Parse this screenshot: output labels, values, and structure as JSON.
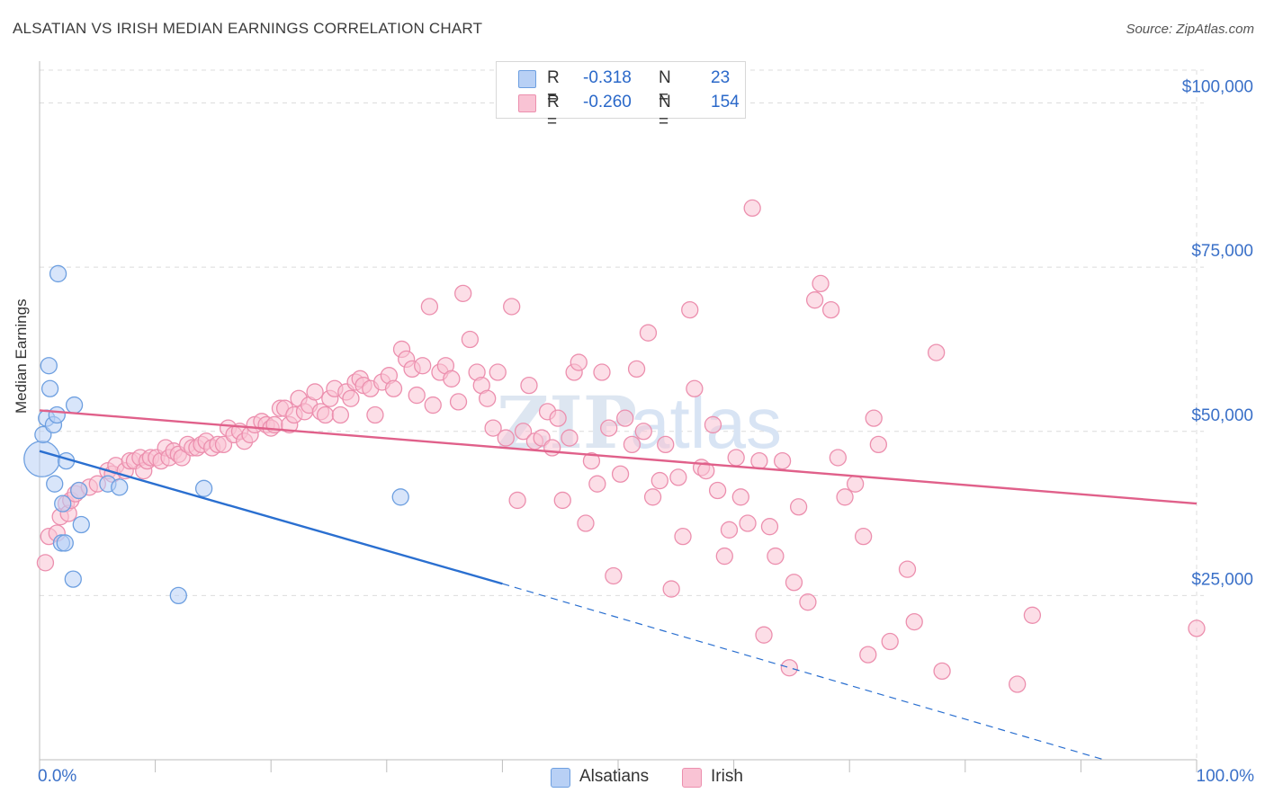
{
  "title": "ALSATIAN VS IRISH MEDIAN EARNINGS CORRELATION CHART",
  "source": "Source: ZipAtlas.com",
  "watermark": "ZIPatlas",
  "colors": {
    "alsatians_fill": "#b8d0f5",
    "alsatians_stroke": "#6d9fe0",
    "alsatians_line": "#2a6fd0",
    "irish_fill": "#f9c3d4",
    "irish_stroke": "#ec8fae",
    "irish_line": "#e0608a",
    "tick": "#3a70c8"
  },
  "legend": {
    "rows": [
      {
        "r_label": "R =",
        "r_value": "-0.318",
        "n_label": "N =",
        "n_value": "23"
      },
      {
        "r_label": "R =",
        "r_value": "-0.260",
        "n_label": "N =",
        "n_value": "154"
      }
    ],
    "bottom": [
      "Alsatians",
      "Irish"
    ]
  },
  "chart_data": {
    "type": "scatter",
    "title": "ALSATIAN VS IRISH MEDIAN EARNINGS CORRELATION CHART",
    "xlabel": "",
    "ylabel": "Median Earnings",
    "xlim": [
      0,
      100
    ],
    "ylim": [
      0,
      105000
    ],
    "x_tick_labels": [
      "0.0%",
      "100.0%"
    ],
    "y_ticks": [
      25000,
      50000,
      75000,
      100000
    ],
    "y_tick_labels": [
      "$25,000",
      "$50,000",
      "$75,000",
      "$100,000"
    ],
    "grid": true,
    "legend_position": "top-center",
    "series": [
      {
        "name": "Alsatians",
        "r": -0.318,
        "n": 23,
        "trend": {
          "x": [
            0,
            40,
            92
          ],
          "y": [
            47000,
            26800,
            0
          ],
          "solid_until_x": 40
        },
        "points": [
          [
            0.2,
            45800,
            2.2
          ],
          [
            0.3,
            49500,
            1
          ],
          [
            0.6,
            52000,
            1
          ],
          [
            0.8,
            60000,
            1
          ],
          [
            0.9,
            56500,
            1
          ],
          [
            1.2,
            51000,
            1
          ],
          [
            1.5,
            52500,
            1
          ],
          [
            1.6,
            74000,
            1
          ],
          [
            2.0,
            39000,
            1
          ],
          [
            1.9,
            33000,
            1
          ],
          [
            1.3,
            42000,
            1
          ],
          [
            2.2,
            33000,
            1
          ],
          [
            2.3,
            45500,
            1
          ],
          [
            2.9,
            27500,
            1
          ],
          [
            3.0,
            54000,
            1
          ],
          [
            3.4,
            41000,
            1
          ],
          [
            3.6,
            35800,
            1
          ],
          [
            5.9,
            42000,
            1
          ],
          [
            6.9,
            41500,
            1
          ],
          [
            12.0,
            25000,
            1
          ],
          [
            14.2,
            41300,
            1
          ],
          [
            31.2,
            40000,
            1
          ]
        ]
      },
      {
        "name": "Irish",
        "r": -0.26,
        "n": 154,
        "trend": {
          "x": [
            0,
            100
          ],
          "y": [
            53200,
            39000
          ]
        },
        "points": [
          [
            0.5,
            30000,
            1
          ],
          [
            0.8,
            34000,
            1
          ],
          [
            1.5,
            34500,
            1
          ],
          [
            1.8,
            37000,
            1
          ],
          [
            2.3,
            39000,
            1
          ],
          [
            2.5,
            37500,
            1
          ],
          [
            2.7,
            39500,
            1
          ],
          [
            3.1,
            40500,
            1
          ],
          [
            3.4,
            41000,
            1
          ],
          [
            4.3,
            41500,
            1
          ],
          [
            5.0,
            42000,
            1
          ],
          [
            5.9,
            44000,
            1
          ],
          [
            6.3,
            43500,
            1
          ],
          [
            6.6,
            44800,
            1
          ],
          [
            7.4,
            44000,
            1
          ],
          [
            7.8,
            45500,
            1
          ],
          [
            8.2,
            45500,
            1
          ],
          [
            8.7,
            46000,
            1
          ],
          [
            9.0,
            44000,
            1
          ],
          [
            9.3,
            45500,
            1
          ],
          [
            9.6,
            46000,
            1
          ],
          [
            10.1,
            46000,
            1
          ],
          [
            10.5,
            45500,
            1
          ],
          [
            10.9,
            47500,
            1
          ],
          [
            11.2,
            46000,
            1
          ],
          [
            11.6,
            47000,
            1
          ],
          [
            12.0,
            46500,
            1
          ],
          [
            12.3,
            46000,
            1
          ],
          [
            12.8,
            48000,
            1
          ],
          [
            13.2,
            47500,
            1
          ],
          [
            13.6,
            47500,
            1
          ],
          [
            14.0,
            48000,
            1
          ],
          [
            14.4,
            48500,
            1
          ],
          [
            14.9,
            47500,
            1
          ],
          [
            15.4,
            48000,
            1
          ],
          [
            15.9,
            48000,
            1
          ],
          [
            16.3,
            50500,
            1
          ],
          [
            16.8,
            49500,
            1
          ],
          [
            17.3,
            50000,
            1
          ],
          [
            17.7,
            48500,
            1
          ],
          [
            18.2,
            49500,
            1
          ],
          [
            18.6,
            51000,
            1
          ],
          [
            19.2,
            51500,
            1
          ],
          [
            19.6,
            51000,
            1
          ],
          [
            20.0,
            50500,
            1
          ],
          [
            20.3,
            51000,
            1
          ],
          [
            20.8,
            53500,
            1
          ],
          [
            21.2,
            53500,
            1
          ],
          [
            21.6,
            51000,
            1
          ],
          [
            22.0,
            52500,
            1
          ],
          [
            22.4,
            55000,
            1
          ],
          [
            22.9,
            53000,
            1
          ],
          [
            23.3,
            54000,
            1
          ],
          [
            23.8,
            56000,
            1
          ],
          [
            24.3,
            53000,
            1
          ],
          [
            24.7,
            52500,
            1
          ],
          [
            25.1,
            55000,
            1
          ],
          [
            25.5,
            56500,
            1
          ],
          [
            26.0,
            52500,
            1
          ],
          [
            26.5,
            56000,
            1
          ],
          [
            26.9,
            55000,
            1
          ],
          [
            27.3,
            57500,
            1
          ],
          [
            27.7,
            58000,
            1
          ],
          [
            28.0,
            57000,
            1
          ],
          [
            28.6,
            56500,
            1
          ],
          [
            29.0,
            52500,
            1
          ],
          [
            29.6,
            57500,
            1
          ],
          [
            30.2,
            58500,
            1
          ],
          [
            30.6,
            56500,
            1
          ],
          [
            31.3,
            62500,
            1
          ],
          [
            31.7,
            61000,
            1
          ],
          [
            32.2,
            59500,
            1
          ],
          [
            32.6,
            55500,
            1
          ],
          [
            33.1,
            60000,
            1
          ],
          [
            33.7,
            69000,
            1
          ],
          [
            34.0,
            54000,
            1
          ],
          [
            34.6,
            59000,
            1
          ],
          [
            35.1,
            60000,
            1
          ],
          [
            35.6,
            58000,
            1
          ],
          [
            36.2,
            54500,
            1
          ],
          [
            36.6,
            71000,
            1
          ],
          [
            37.2,
            64000,
            1
          ],
          [
            37.8,
            59000,
            1
          ],
          [
            38.2,
            57000,
            1
          ],
          [
            38.7,
            55000,
            1
          ],
          [
            39.2,
            50500,
            1
          ],
          [
            39.6,
            59000,
            1
          ],
          [
            40.3,
            49000,
            1
          ],
          [
            40.8,
            69000,
            1
          ],
          [
            41.3,
            39500,
            1
          ],
          [
            41.8,
            50000,
            1
          ],
          [
            42.3,
            57000,
            1
          ],
          [
            42.8,
            48500,
            1
          ],
          [
            43.4,
            49000,
            1
          ],
          [
            43.9,
            53000,
            1
          ],
          [
            44.3,
            47500,
            1
          ],
          [
            44.8,
            52000,
            1
          ],
          [
            45.2,
            39500,
            1
          ],
          [
            45.8,
            49000,
            1
          ],
          [
            46.2,
            59000,
            1
          ],
          [
            46.6,
            60500,
            1
          ],
          [
            47.2,
            36000,
            1
          ],
          [
            47.7,
            45500,
            1
          ],
          [
            48.2,
            42000,
            1
          ],
          [
            48.6,
            59000,
            1
          ],
          [
            49.2,
            50500,
            1
          ],
          [
            49.6,
            28000,
            1
          ],
          [
            50.2,
            43500,
            1
          ],
          [
            50.6,
            52000,
            1
          ],
          [
            51.2,
            48000,
            1
          ],
          [
            51.6,
            59500,
            1
          ],
          [
            52.2,
            50000,
            1
          ],
          [
            52.6,
            65000,
            1
          ],
          [
            53.0,
            40000,
            1
          ],
          [
            53.6,
            42500,
            1
          ],
          [
            54.1,
            48000,
            1
          ],
          [
            54.6,
            26000,
            1
          ],
          [
            55.2,
            43000,
            1
          ],
          [
            55.6,
            34000,
            1
          ],
          [
            56.2,
            68500,
            1
          ],
          [
            56.6,
            56500,
            1
          ],
          [
            57.2,
            44500,
            1
          ],
          [
            57.6,
            44000,
            1
          ],
          [
            58.2,
            51000,
            1
          ],
          [
            58.6,
            41000,
            1
          ],
          [
            59.2,
            31000,
            1
          ],
          [
            59.6,
            35000,
            1
          ],
          [
            60.2,
            46000,
            1
          ],
          [
            60.6,
            40000,
            1
          ],
          [
            61.2,
            36000,
            1
          ],
          [
            61.6,
            84000,
            1
          ],
          [
            62.2,
            45500,
            1
          ],
          [
            62.6,
            19000,
            1
          ],
          [
            63.1,
            35500,
            1
          ],
          [
            63.6,
            31000,
            1
          ],
          [
            64.2,
            45500,
            1
          ],
          [
            64.8,
            14000,
            1
          ],
          [
            65.2,
            27000,
            1
          ],
          [
            65.6,
            38500,
            1
          ],
          [
            66.4,
            24000,
            1
          ],
          [
            67.0,
            70000,
            1
          ],
          [
            67.5,
            72500,
            1
          ],
          [
            68.4,
            68500,
            1
          ],
          [
            69.0,
            46000,
            1
          ],
          [
            69.6,
            40000,
            1
          ],
          [
            70.5,
            42000,
            1
          ],
          [
            71.2,
            34000,
            1
          ],
          [
            71.6,
            16000,
            1
          ],
          [
            72.1,
            52000,
            1
          ],
          [
            72.5,
            48000,
            1
          ],
          [
            73.5,
            18000,
            1
          ],
          [
            75.0,
            29000,
            1
          ],
          [
            75.6,
            21000,
            1
          ],
          [
            77.5,
            62000,
            1
          ],
          [
            78.0,
            13500,
            1
          ],
          [
            84.5,
            11500,
            1
          ],
          [
            85.8,
            22000,
            1
          ],
          [
            100.0,
            20000,
            1
          ]
        ]
      }
    ]
  }
}
